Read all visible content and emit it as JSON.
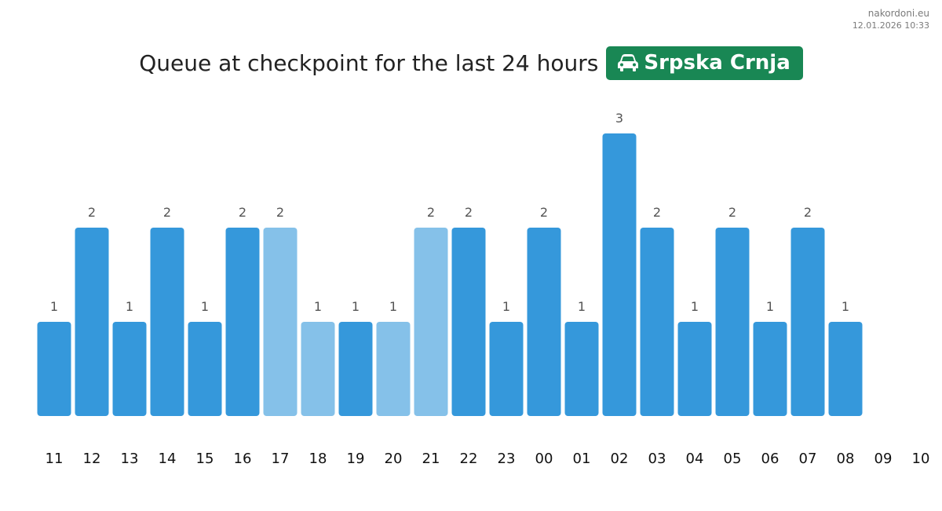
{
  "source": {
    "site": "nakordoni.eu",
    "datetime": "12.01.2026 10:33"
  },
  "header": {
    "title": "Queue at checkpoint for the last 24 hours",
    "checkpoint_name": "Srpska Crnja",
    "icon": "car-icon"
  },
  "colors": {
    "bar": "#3598db",
    "bar_light": "#85c1e9",
    "badge": "#198754"
  },
  "chart_data": {
    "type": "bar",
    "title": "Queue at checkpoint for the last 24 hours",
    "xlabel": "",
    "ylabel": "",
    "categories": [
      "11",
      "12",
      "13",
      "14",
      "15",
      "16",
      "17",
      "18",
      "19",
      "20",
      "21",
      "22",
      "23",
      "00",
      "01",
      "02",
      "03",
      "04",
      "05",
      "06",
      "07",
      "08",
      "09",
      "10"
    ],
    "values": [
      1,
      2,
      1,
      2,
      1,
      2,
      2,
      1,
      1,
      1,
      2,
      2,
      1,
      2,
      1,
      3,
      2,
      1,
      2,
      1,
      2,
      1,
      null,
      null
    ],
    "highlighted_light": [
      false,
      false,
      false,
      false,
      false,
      false,
      true,
      true,
      false,
      true,
      true,
      false,
      false,
      false,
      false,
      false,
      false,
      false,
      false,
      false,
      false,
      false,
      false,
      false
    ],
    "ylim": [
      0,
      3
    ],
    "grid": false,
    "legend": "none",
    "data_labels": true
  }
}
